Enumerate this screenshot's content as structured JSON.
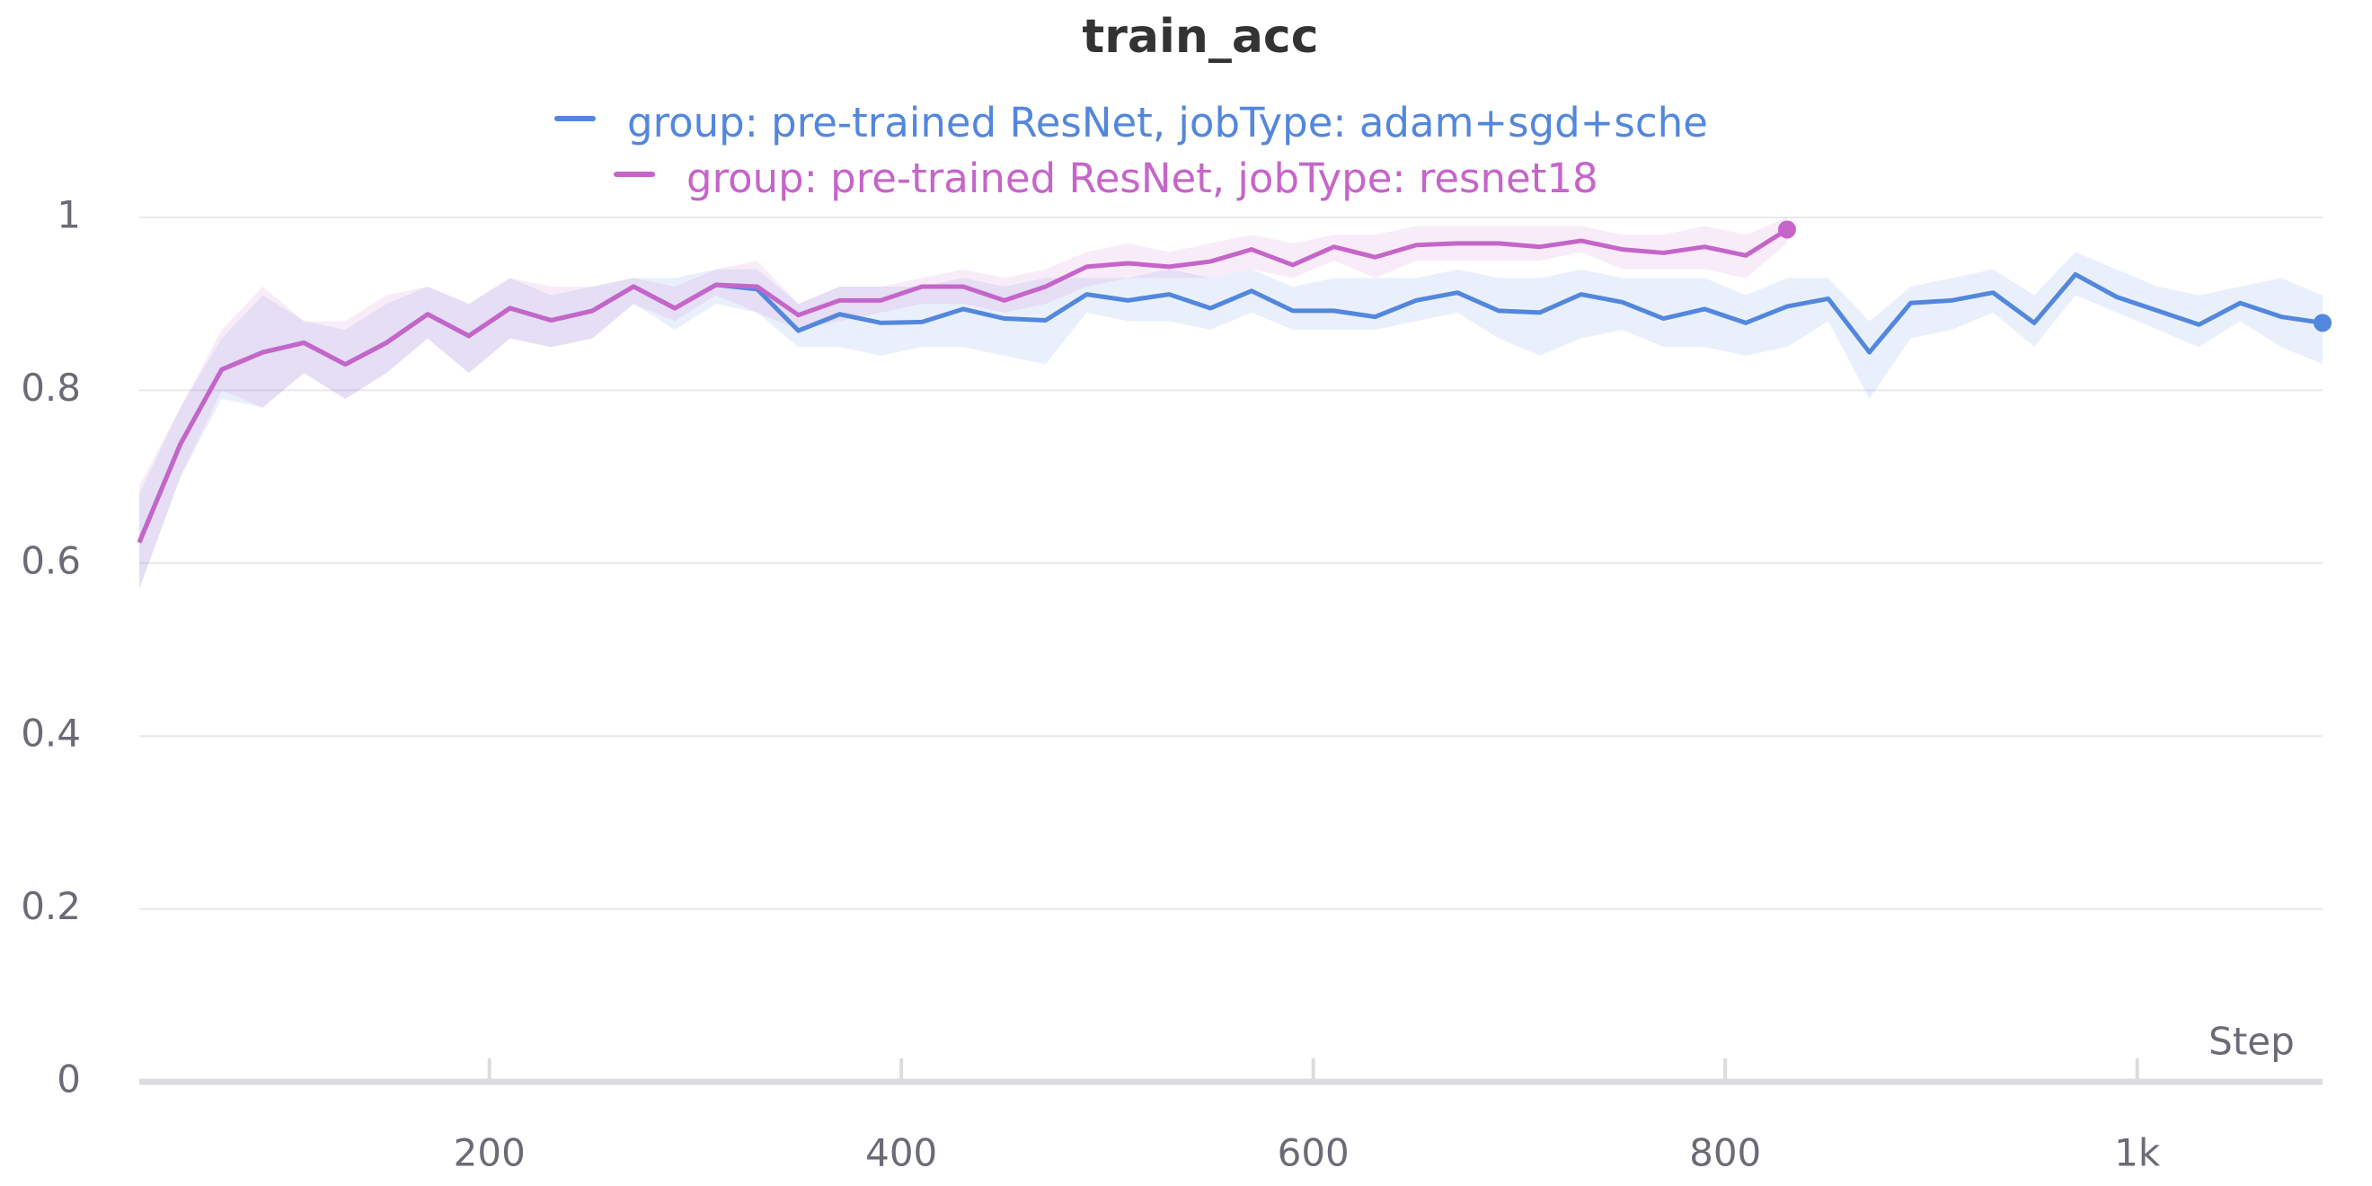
{
  "chart_data": {
    "type": "line",
    "title": "train_acc",
    "x_label": "Step",
    "xlim": [
      30,
      1090
    ],
    "ylim": [
      0,
      1
    ],
    "xticks": [
      200,
      400,
      600,
      800,
      {
        "value": 1000,
        "label": "1k"
      }
    ],
    "yticks": [
      0,
      0.2,
      0.4,
      0.6,
      0.8,
      1
    ],
    "grid": true,
    "legend": "top",
    "series": [
      {
        "name": "group: pre-trained ResNet, jobType: adam+sgd+sche",
        "color": "#5387dd",
        "x": [
          30,
          50,
          70,
          90,
          110,
          130,
          150,
          170,
          190,
          210,
          230,
          250,
          270,
          290,
          310,
          330,
          350,
          370,
          390,
          410,
          430,
          450,
          470,
          490,
          510,
          530,
          550,
          570,
          590,
          610,
          630,
          650,
          670,
          690,
          710,
          730,
          750,
          770,
          790,
          810,
          830,
          850,
          870,
          890,
          910,
          930,
          950,
          970,
          990,
          1010,
          1030,
          1050,
          1070,
          1090
        ],
        "values": [
          0.624,
          0.738,
          0.824,
          0.844,
          0.855,
          0.83,
          0.855,
          0.888,
          0.863,
          0.895,
          0.881,
          0.892,
          0.92,
          0.895,
          0.922,
          0.917,
          0.869,
          0.888,
          0.878,
          0.879,
          0.894,
          0.883,
          0.881,
          0.911,
          0.904,
          0.911,
          0.895,
          0.915,
          0.892,
          0.892,
          0.885,
          0.904,
          0.913,
          0.892,
          0.89,
          0.911,
          0.902,
          0.883,
          0.894,
          0.878,
          0.897,
          0.906,
          0.844,
          0.901,
          0.904,
          0.913,
          0.878,
          0.934,
          0.908,
          0.892,
          0.876,
          0.901,
          0.885,
          0.878
        ],
        "upper": [
          0.68,
          0.78,
          0.86,
          0.91,
          0.88,
          0.87,
          0.9,
          0.92,
          0.9,
          0.93,
          0.91,
          0.92,
          0.93,
          0.93,
          0.94,
          0.94,
          0.9,
          0.92,
          0.92,
          0.92,
          0.93,
          0.92,
          0.93,
          0.93,
          0.93,
          0.94,
          0.93,
          0.94,
          0.92,
          0.93,
          0.93,
          0.93,
          0.94,
          0.93,
          0.93,
          0.94,
          0.93,
          0.93,
          0.93,
          0.91,
          0.93,
          0.93,
          0.88,
          0.92,
          0.93,
          0.94,
          0.91,
          0.96,
          0.94,
          0.92,
          0.91,
          0.92,
          0.93,
          0.91
        ],
        "lower": [
          0.57,
          0.7,
          0.79,
          0.78,
          0.82,
          0.79,
          0.82,
          0.86,
          0.82,
          0.86,
          0.85,
          0.86,
          0.9,
          0.87,
          0.9,
          0.89,
          0.85,
          0.85,
          0.84,
          0.85,
          0.85,
          0.84,
          0.83,
          0.89,
          0.88,
          0.88,
          0.87,
          0.89,
          0.87,
          0.87,
          0.87,
          0.88,
          0.89,
          0.86,
          0.84,
          0.86,
          0.87,
          0.85,
          0.85,
          0.84,
          0.85,
          0.88,
          0.79,
          0.86,
          0.87,
          0.89,
          0.85,
          0.91,
          0.89,
          0.87,
          0.85,
          0.88,
          0.85,
          0.83
        ]
      },
      {
        "name": "group: pre-trained ResNet, jobType: resnet18",
        "color": "#c565c9",
        "x": [
          30,
          50,
          70,
          90,
          110,
          130,
          150,
          170,
          190,
          210,
          230,
          250,
          270,
          290,
          310,
          330,
          350,
          370,
          390,
          410,
          430,
          450,
          470,
          490,
          510,
          530,
          550,
          570,
          590,
          610,
          630,
          650,
          670,
          690,
          710,
          730,
          750,
          770,
          790,
          810,
          830
        ],
        "values": [
          0.624,
          0.738,
          0.824,
          0.844,
          0.855,
          0.83,
          0.855,
          0.888,
          0.863,
          0.895,
          0.881,
          0.892,
          0.92,
          0.895,
          0.922,
          0.92,
          0.887,
          0.904,
          0.904,
          0.92,
          0.92,
          0.904,
          0.92,
          0.943,
          0.947,
          0.943,
          0.949,
          0.963,
          0.945,
          0.966,
          0.954,
          0.968,
          0.97,
          0.97,
          0.966,
          0.973,
          0.963,
          0.959,
          0.966,
          0.956,
          0.986
        ],
        "upper": [
          0.69,
          0.78,
          0.87,
          0.92,
          0.88,
          0.88,
          0.91,
          0.92,
          0.9,
          0.93,
          0.92,
          0.92,
          0.93,
          0.92,
          0.94,
          0.95,
          0.9,
          0.92,
          0.92,
          0.93,
          0.94,
          0.93,
          0.94,
          0.96,
          0.97,
          0.96,
          0.97,
          0.98,
          0.97,
          0.98,
          0.98,
          0.99,
          0.99,
          0.99,
          0.99,
          0.99,
          0.98,
          0.98,
          0.99,
          0.98,
          1.0
        ],
        "lower": [
          0.57,
          0.7,
          0.8,
          0.78,
          0.82,
          0.79,
          0.82,
          0.86,
          0.82,
          0.86,
          0.85,
          0.86,
          0.9,
          0.88,
          0.91,
          0.89,
          0.87,
          0.88,
          0.89,
          0.9,
          0.9,
          0.89,
          0.9,
          0.92,
          0.93,
          0.93,
          0.93,
          0.94,
          0.93,
          0.95,
          0.93,
          0.95,
          0.95,
          0.95,
          0.95,
          0.96,
          0.94,
          0.94,
          0.94,
          0.93,
          0.97
        ]
      }
    ]
  }
}
